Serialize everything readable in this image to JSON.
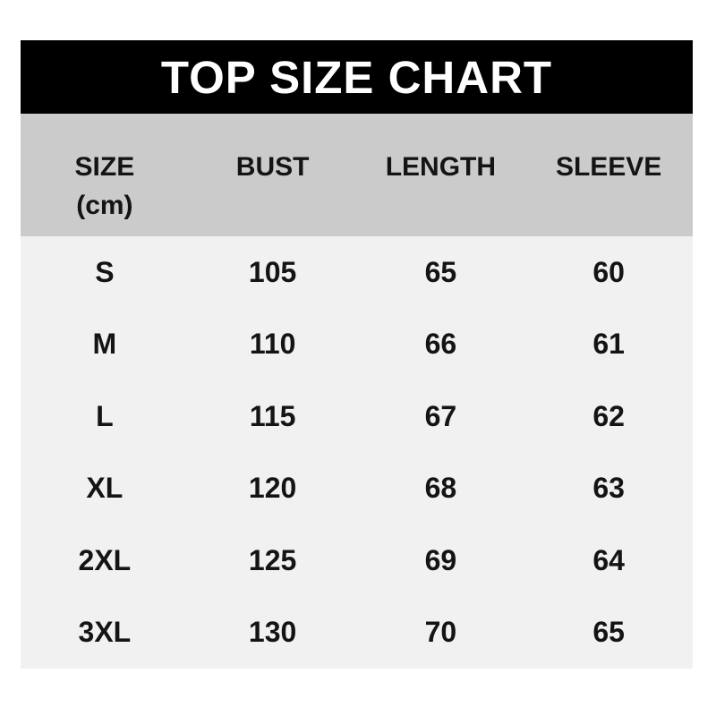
{
  "title": "TOP SIZE CHART",
  "colors": {
    "title_bg": "#000000",
    "title_text": "#ffffff",
    "header_bg": "#cbcbcb",
    "body_bg": "#f1f1f1",
    "text": "#141414",
    "page_bg": "#ffffff"
  },
  "chart_data": {
    "type": "table",
    "title": "TOP SIZE CHART",
    "unit": "cm",
    "columns": [
      {
        "label": "SIZE",
        "sub": "(cm)"
      },
      {
        "label": "BUST",
        "sub": ""
      },
      {
        "label": "LENGTH",
        "sub": ""
      },
      {
        "label": "SLEEVE",
        "sub": ""
      }
    ],
    "rows": [
      [
        "S",
        "105",
        "65",
        "60"
      ],
      [
        "M",
        "110",
        "66",
        "61"
      ],
      [
        "L",
        "115",
        "67",
        "62"
      ],
      [
        "XL",
        "120",
        "68",
        "63"
      ],
      [
        "2XL",
        "125",
        "69",
        "64"
      ],
      [
        "3XL",
        "130",
        "70",
        "65"
      ]
    ],
    "layout": {
      "columns_equal_width": true,
      "text_alignment": "center",
      "header_background": "#cbcbcb",
      "body_background": "#f1f1f1"
    }
  }
}
